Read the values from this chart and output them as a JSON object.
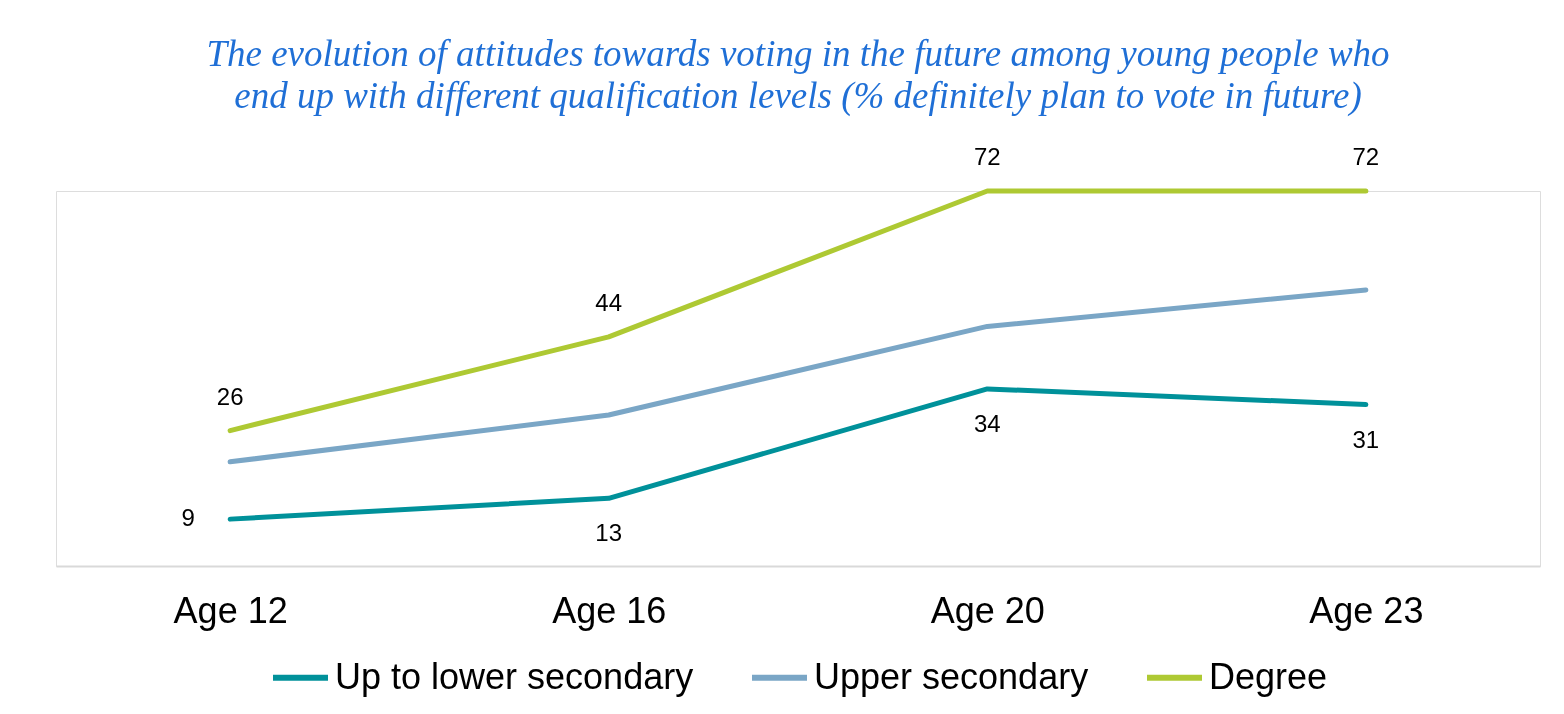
{
  "chart_data": {
    "type": "line",
    "title": "The evolution of attitudes towards voting in the future among young people who end up with different qualification levels (% definitely plan to vote in future)",
    "categories": [
      "Age 12",
      "Age 16",
      "Age 20",
      "Age 23"
    ],
    "series": [
      {
        "name": "Up to lower secondary",
        "color": "#00919a",
        "values": [
          9,
          13,
          34,
          31
        ],
        "value_labels": [
          "9",
          "13",
          "34",
          "31"
        ]
      },
      {
        "name": "Upper secondary",
        "color": "#7aa6c6",
        "values": [
          20,
          29,
          46,
          53
        ]
      },
      {
        "name": "Degree",
        "color": "#aec933",
        "values": [
          26,
          44,
          72,
          72
        ],
        "value_labels": [
          "26",
          "44",
          "72",
          "72"
        ]
      }
    ],
    "legend": "bottom"
  }
}
